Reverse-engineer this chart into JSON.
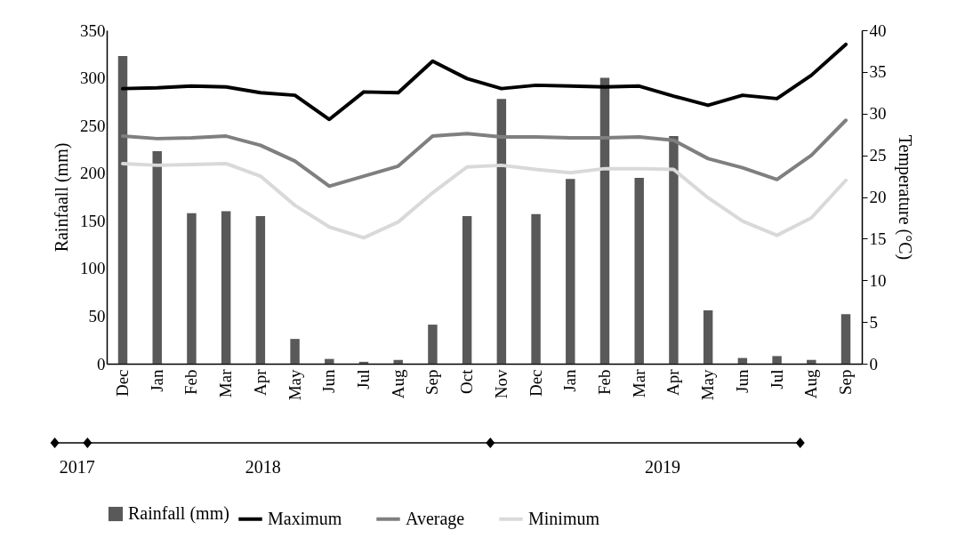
{
  "chart_data": {
    "type": "bar",
    "categories": [
      "Dec",
      "Jan",
      "Feb",
      "Mar",
      "Apr",
      "May",
      "Jun",
      "Jul",
      "Aug",
      "Sep",
      "Oct",
      "Nov",
      "Dec",
      "Jan",
      "Feb",
      "Mar",
      "Apr",
      "May",
      "Jun",
      "Jul",
      "Aug",
      "Sep"
    ],
    "ylabel": "Rainfaall (mm)",
    "y2label": "Temperature (°C)",
    "ylim": [
      0,
      350
    ],
    "yticks": [
      0,
      50,
      100,
      150,
      200,
      250,
      300,
      350
    ],
    "y2lim": [
      0,
      40
    ],
    "y2ticks": [
      0,
      5,
      10,
      15,
      20,
      25,
      30,
      35,
      40
    ],
    "legend": "bottom",
    "grid": false,
    "annotations": [
      "2017",
      "2018",
      "2019"
    ],
    "series": [
      {
        "name": "Rainfall (mm)",
        "color": "#595959",
        "values": [
          323,
          223,
          158,
          160,
          155,
          26,
          5,
          2,
          4,
          41,
          155,
          278,
          157,
          194,
          300,
          195,
          239,
          56,
          6,
          8,
          4,
          52
        ]
      },
      {
        "name": "Maximum",
        "type": "line",
        "axis": "y2",
        "color": "#000000",
        "values": [
          33.0,
          33.1,
          33.3,
          33.2,
          32.5,
          32.2,
          29.3,
          32.6,
          32.5,
          36.3,
          34.2,
          33.0,
          33.4,
          33.3,
          33.2,
          33.3,
          32.1,
          31.0,
          32.2,
          31.8,
          34.6,
          38.3
        ]
      },
      {
        "name": "Average",
        "type": "line",
        "axis": "y2",
        "color": "#7f7f7f",
        "values": [
          27.3,
          27.0,
          27.1,
          27.3,
          26.2,
          24.3,
          21.3,
          22.5,
          23.7,
          27.3,
          27.6,
          27.2,
          27.2,
          27.1,
          27.1,
          27.2,
          26.8,
          24.6,
          23.5,
          22.1,
          25.0,
          29.2
        ]
      },
      {
        "name": "Minimum",
        "type": "line",
        "axis": "y2",
        "color": "#d9d9d9",
        "values": [
          24.0,
          23.8,
          23.9,
          24.0,
          22.5,
          19.0,
          16.4,
          15.1,
          17.0,
          20.5,
          23.6,
          23.8,
          23.3,
          22.9,
          23.4,
          23.4,
          23.3,
          19.9,
          17.1,
          15.4,
          17.5,
          22.0
        ]
      }
    ]
  }
}
